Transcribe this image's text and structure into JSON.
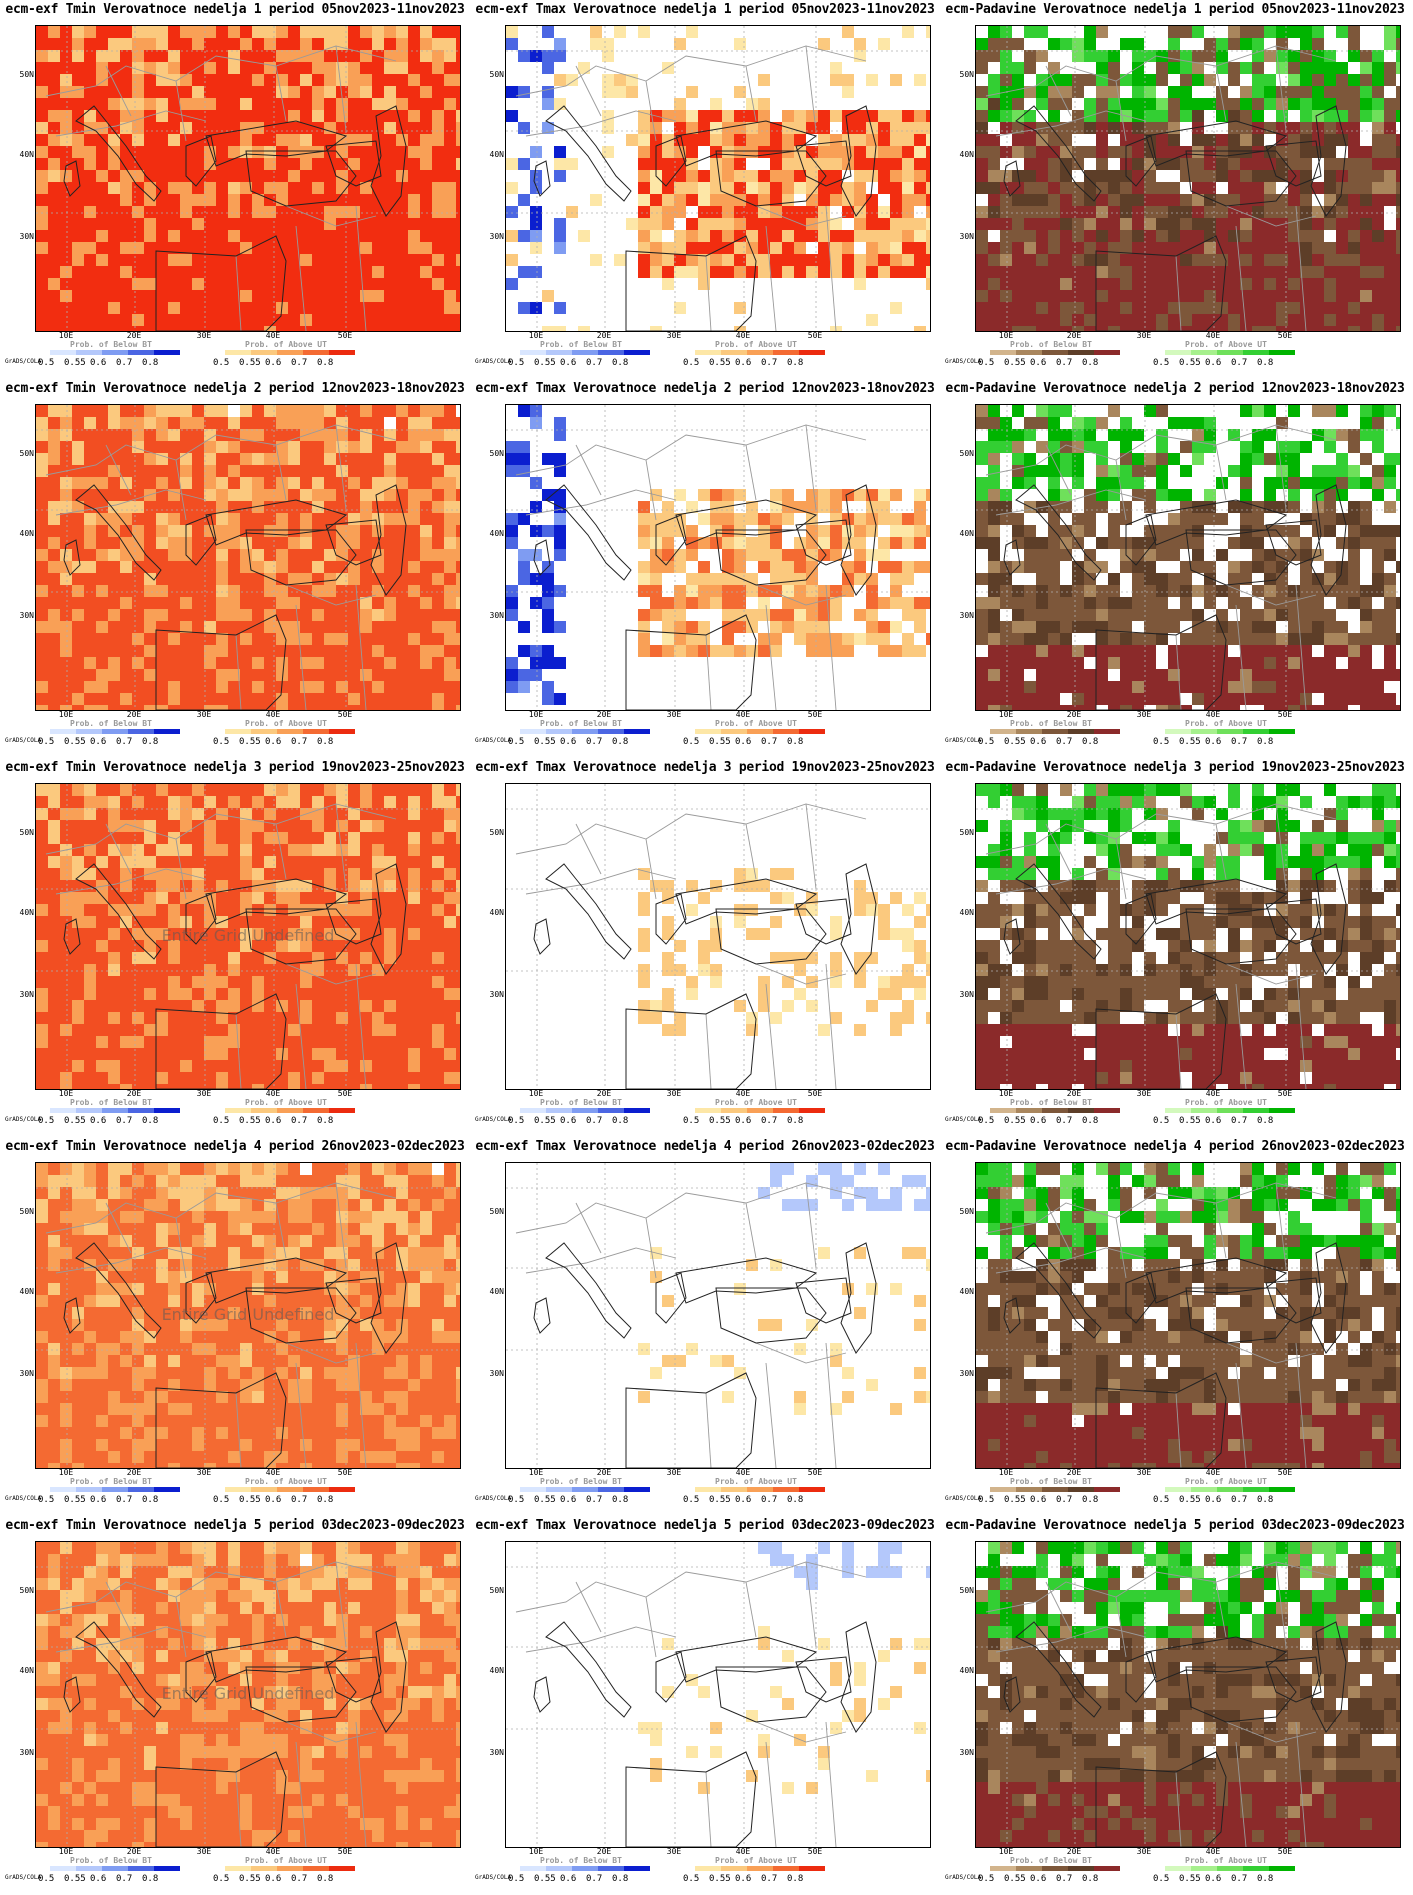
{
  "brand_text": "GrADS/COLA",
  "undefined_text": "Entire Grid Undefined",
  "lat_labels": [
    "50N",
    "40N",
    "30N"
  ],
  "lon_labels": [
    "10E",
    "20E",
    "30E",
    "40E",
    "50E"
  ],
  "legend_ticks": [
    "0.5",
    "0.55",
    "0.6",
    "0.7",
    "0.8"
  ],
  "legend_titles": {
    "below_bt": "Prob. of Below BT",
    "above_ut": "Prob. of Above UT"
  },
  "colors": {
    "temp_above": [
      "#fde7a7",
      "#fbc97e",
      "#f9a056",
      "#f46a32",
      "#ec2b0f"
    ],
    "temp_below": [
      "#d9e6ff",
      "#b4c8fb",
      "#7f9cf2",
      "#4b66e3",
      "#0b1ecf"
    ],
    "precip_below": [
      "#d2b48c",
      "#a9865d",
      "#7d573a",
      "#5d3e28",
      "#8b2a2a"
    ],
    "precip_above": [
      "#d3f9bd",
      "#a6f08d",
      "#6fe05b",
      "#33cf33",
      "#00b400"
    ]
  },
  "rows": [
    {
      "week": 1,
      "panels": [
        {
          "title": "ecm-exf Tmin Verovatnoce nedelja 1 period 05nov2023-11nov2023",
          "type": "tmin",
          "undefined": false,
          "fill": "#f22d10",
          "level": 0.85
        },
        {
          "title": "ecm-exf Tmax Verovatnoce nedelja 1 period 05nov2023-11nov2023",
          "type": "tmax",
          "undefined": false,
          "fill": "#f22d10",
          "level": 0.6
        },
        {
          "title": "ecm-Padavine Verovatnoce nedelja 1 period 05nov2023-11nov2023",
          "type": "precip",
          "undefined": false,
          "fill": "#8b2a2a",
          "level": 0.7
        }
      ]
    },
    {
      "week": 2,
      "panels": [
        {
          "title": "ecm-exf Tmin Verovatnoce nedelja 2 period 12nov2023-18nov2023",
          "type": "tmin",
          "undefined": false,
          "fill": "#f24e22",
          "level": 0.75
        },
        {
          "title": "ecm-exf Tmax Verovatnoce nedelja 2 period 12nov2023-18nov2023",
          "type": "tmax",
          "undefined": false,
          "fill": "#f46a32",
          "level": 0.45
        },
        {
          "title": "ecm-Padavine Verovatnoce nedelja 2 period 12nov2023-18nov2023",
          "type": "precip",
          "undefined": false,
          "fill": "#7d573a",
          "level": 0.55
        }
      ]
    },
    {
      "week": 3,
      "panels": [
        {
          "title": "ecm-exf Tmin Verovatnoce nedelja 3 period 19nov2023-25nov2023",
          "type": "tmin",
          "undefined": true,
          "fill": "#f24e22",
          "level": 0.8
        },
        {
          "title": "ecm-exf Tmax Verovatnoce nedelja 3 period 19nov2023-25nov2023",
          "type": "tmax",
          "undefined": false,
          "fill": "#fbc97e",
          "level": 0.2
        },
        {
          "title": "ecm-Padavine Verovatnoce nedelja 3 period 19nov2023-25nov2023",
          "type": "precip",
          "undefined": false,
          "fill": "#7d573a",
          "level": 0.55
        }
      ]
    },
    {
      "week": 4,
      "panels": [
        {
          "title": "ecm-exf Tmin Verovatnoce nedelja 4 period 26nov2023-02dec2023",
          "type": "tmin",
          "undefined": true,
          "fill": "#f46a32",
          "level": 0.75
        },
        {
          "title": "ecm-exf Tmax Verovatnoce nedelja 4 period 26nov2023-02dec2023",
          "type": "tmax",
          "undefined": false,
          "fill": "#fbc97e",
          "level": 0.05
        },
        {
          "title": "ecm-Padavine Verovatnoce nedelja 4 period 26nov2023-02dec2023",
          "type": "precip",
          "undefined": false,
          "fill": "#7d573a",
          "level": 0.65
        }
      ]
    },
    {
      "week": 5,
      "panels": [
        {
          "title": "ecm-exf Tmin Verovatnoce nedelja 5 period 03dec2023-09dec2023",
          "type": "tmin",
          "undefined": true,
          "fill": "#f46a32",
          "level": 0.75
        },
        {
          "title": "ecm-exf Tmax Verovatnoce nedelja 5 period 03dec2023-09dec2023",
          "type": "tmax",
          "undefined": false,
          "fill": "#fbc97e",
          "level": 0.08
        },
        {
          "title": "ecm-Padavine Verovatnoce nedelja 5 period 03dec2023-09dec2023",
          "type": "precip",
          "undefined": false,
          "fill": "#7d573a",
          "level": 0.7
        }
      ]
    }
  ]
}
